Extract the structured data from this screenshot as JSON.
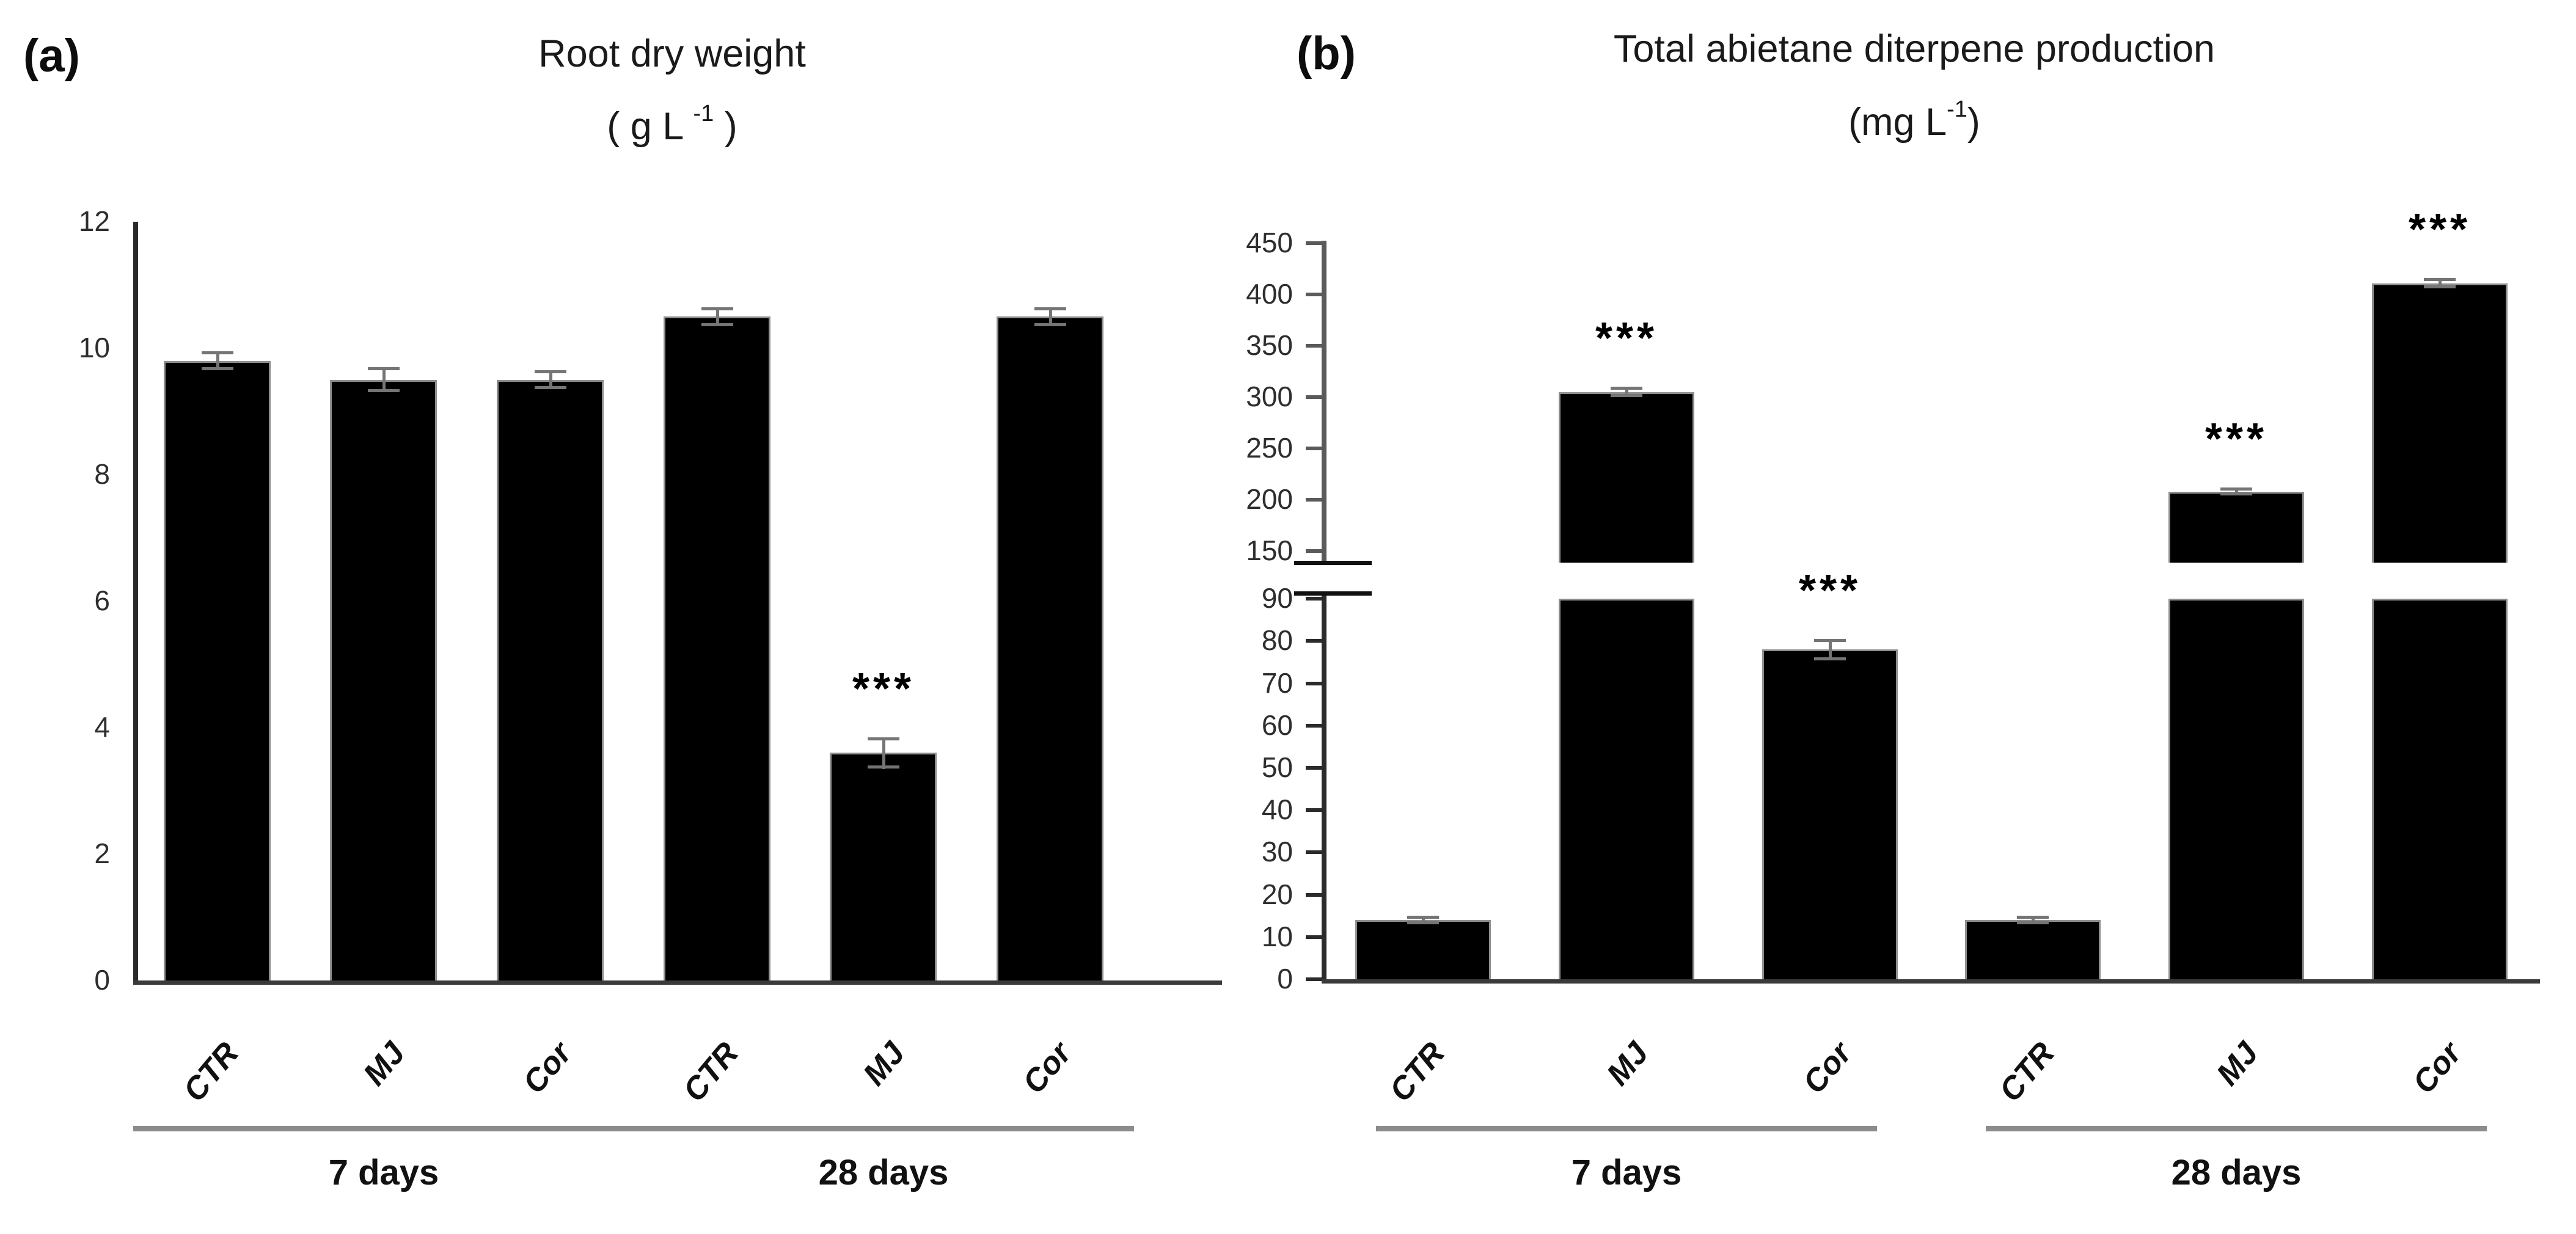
{
  "figure": {
    "panels": [
      {
        "label": "(a)",
        "title": "Root dry weight",
        "unit": {
          "pre": "( g L ",
          "sup": "-1",
          "post": " )"
        }
      },
      {
        "label": "(b)",
        "title": "Total abietane diterpene production",
        "unit": {
          "pre": "(mg L",
          "sup": "-1",
          "post": ")"
        }
      }
    ]
  },
  "chart_data": [
    {
      "type": "bar",
      "panel": "a",
      "title": "Root dry weight",
      "unit_label": "g L-1",
      "categories": [
        "CTR",
        "MJ",
        "Cor",
        "CTR",
        "MJ",
        "Cor"
      ],
      "groups": [
        {
          "label": "7 days",
          "bars": [
            0,
            2
          ]
        },
        {
          "label": "28 days",
          "bars": [
            3,
            5
          ]
        }
      ],
      "values": [
        9.8,
        9.5,
        9.5,
        10.5,
        3.6,
        10.5
      ],
      "errors": [
        0.15,
        0.2,
        0.15,
        0.15,
        0.25,
        0.15
      ],
      "significance": [
        "",
        "",
        "",
        "",
        "***",
        ""
      ],
      "ylim": [
        0,
        12
      ],
      "yticks": [
        0,
        2,
        4,
        6,
        8,
        10,
        12
      ],
      "grid": false,
      "legend": false
    },
    {
      "type": "bar",
      "panel": "b",
      "title": "Total abietane diterpene production",
      "unit_label": "mg L-1",
      "categories": [
        "CTR",
        "MJ",
        "Cor",
        "CTR",
        "MJ",
        "Cor"
      ],
      "groups": [
        {
          "label": "7 days",
          "bars": [
            0,
            2
          ]
        },
        {
          "label": "28 days",
          "bars": [
            3,
            5
          ]
        }
      ],
      "values": [
        14,
        305,
        78,
        14,
        208,
        411
      ],
      "errors": [
        1,
        5,
        2.5,
        1,
        4,
        5
      ],
      "significance": [
        "",
        "***",
        "***",
        "",
        "***",
        "***"
      ],
      "axis_break": {
        "lower_range": [
          0,
          90
        ],
        "upper_range": [
          150,
          450
        ],
        "lower_ticks": [
          0,
          10,
          20,
          30,
          40,
          50,
          60,
          70,
          80,
          90
        ],
        "upper_ticks": [
          150,
          200,
          250,
          300,
          350,
          400,
          450
        ]
      },
      "grid": false,
      "legend": false
    }
  ],
  "colors": {
    "bar": "#000000",
    "bar_edge": "#8f8f8f",
    "axis": "#2b2b2b",
    "axis_upper_segment": "#5a5a5a",
    "baseline": "#3a3a3a",
    "break_line": "#111111",
    "error_bar": "#757575",
    "group_line": "#8c8c8c"
  }
}
